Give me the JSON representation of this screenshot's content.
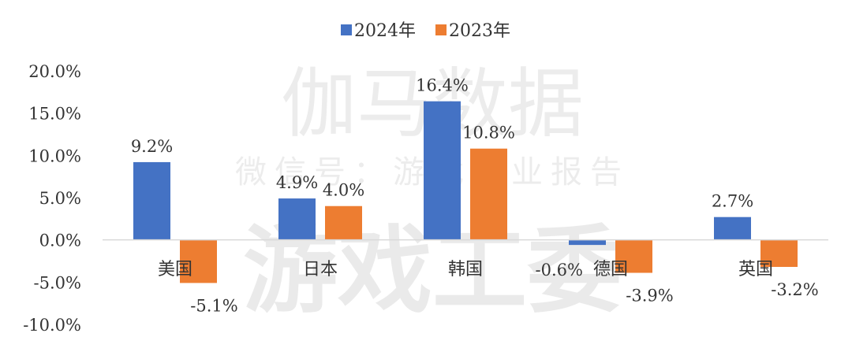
{
  "chart_data": {
    "type": "bar",
    "categories": [
      "美国",
      "日本",
      "韩国",
      "德国",
      "英国"
    ],
    "series": [
      {
        "name": "2024年",
        "color": "#4472C4",
        "values": [
          9.2,
          4.9,
          16.4,
          -0.6,
          2.7
        ],
        "labels": [
          "9.2%",
          "4.9%",
          "16.4%",
          "-0.6%",
          "2.7%"
        ]
      },
      {
        "name": "2023年",
        "color": "#ED7D31",
        "values": [
          -5.1,
          4.0,
          10.8,
          -3.9,
          -3.2
        ],
        "labels": [
          "-5.1%",
          "4.0%",
          "10.8%",
          "-3.9%",
          "-3.2%"
        ]
      }
    ],
    "yticks": [
      "20.0%",
      "15.0%",
      "10.0%",
      "5.0%",
      "0.0%",
      "-5.0%",
      "-10.0%"
    ],
    "ylim": [
      -10,
      20
    ],
    "legend_position": "top-center",
    "grid": false
  },
  "watermark": {
    "line1": "伽马数据",
    "line2": "微信号：游戏产业报告",
    "line3": "游戏工委"
  }
}
